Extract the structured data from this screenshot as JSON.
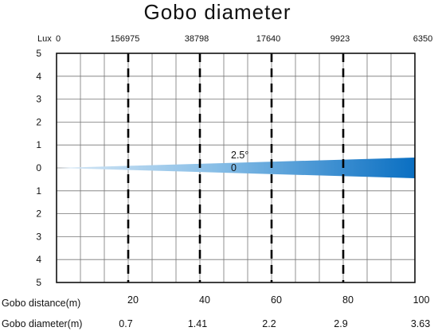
{
  "chart_data": {
    "type": "area",
    "title": "Gobo diameter",
    "top_axis": {
      "label": "Lux",
      "ticks": [
        "0",
        "156975",
        "38798",
        "17640",
        "9923",
        "6350"
      ]
    },
    "y_ticks": [
      "5",
      "4",
      "3",
      "2",
      "1",
      "0",
      "1",
      "2",
      "3",
      "4",
      "5"
    ],
    "ylim": [
      -5,
      5
    ],
    "xlim": [
      0,
      100
    ],
    "grid": true,
    "row_labels": {
      "distance": "Gobo distance(m)",
      "diameter": "Gobo diameter(m)"
    },
    "distances": [
      "20",
      "40",
      "60",
      "80",
      "100"
    ],
    "diameters": [
      "0.7",
      "1.41",
      "2.2",
      "2.9",
      "3.63"
    ],
    "dashed_lines_at": [
      20,
      40,
      60,
      80
    ],
    "beam": {
      "angle_label": "2.5°",
      "zero_label": "0",
      "x": [
        0,
        100
      ],
      "half_width": [
        0,
        0.45
      ],
      "color_start": "#d9e9f6",
      "color_end": "#0a6fc2"
    }
  }
}
